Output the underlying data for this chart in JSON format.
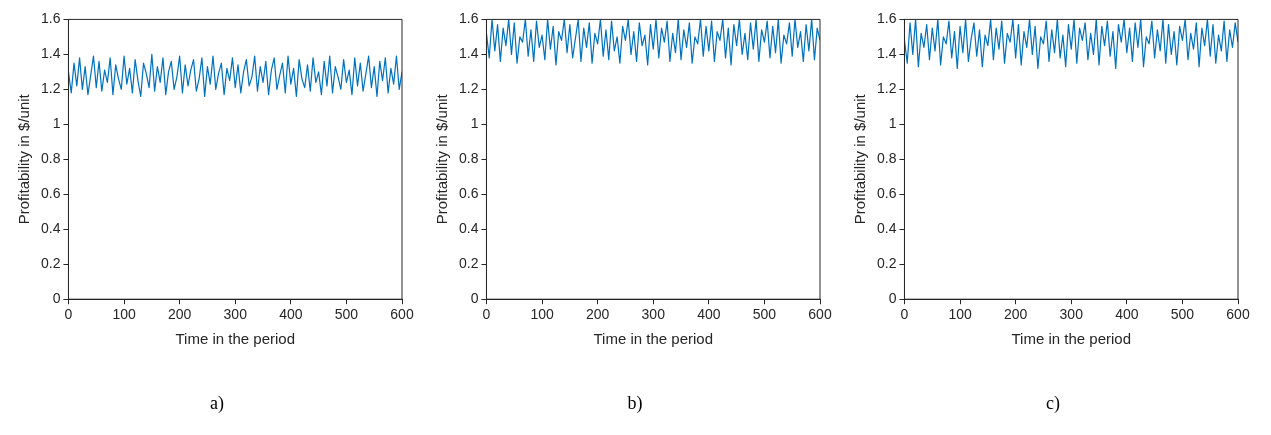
{
  "chart_data": [
    {
      "type": "line",
      "xlabel": "Time in the period",
      "ylabel": "Profitability in $/unit",
      "xlim": [
        0,
        600
      ],
      "xticks": [
        0,
        100,
        200,
        300,
        400,
        500,
        600
      ],
      "ylim": [
        0,
        1.6
      ],
      "yticks": [
        0,
        0.2,
        0.4,
        0.6,
        0.8,
        1,
        1.2,
        1.4,
        1.6
      ],
      "grid": false,
      "legend": false,
      "marker": "none",
      "line_style": "solid",
      "annotations": [
        "a)"
      ],
      "x": [
        0,
        5,
        10,
        15,
        20,
        25,
        30,
        35,
        40,
        45,
        50,
        55,
        60,
        65,
        70,
        75,
        80,
        85,
        90,
        95,
        100,
        105,
        110,
        115,
        120,
        125,
        130,
        135,
        140,
        145,
        150,
        155,
        160,
        165,
        170,
        175,
        180,
        185,
        190,
        195,
        200,
        205,
        210,
        215,
        220,
        225,
        230,
        235,
        240,
        245,
        250,
        255,
        260,
        265,
        270,
        275,
        280,
        285,
        290,
        295,
        300,
        305,
        310,
        315,
        320,
        325,
        330,
        335,
        340,
        345,
        350,
        355,
        360,
        365,
        370,
        375,
        380,
        385,
        390,
        395,
        400,
        405,
        410,
        415,
        420,
        425,
        430,
        435,
        440,
        445,
        450,
        455,
        460,
        465,
        470,
        475,
        480,
        485,
        490,
        495,
        500,
        505,
        510,
        515,
        520,
        525,
        530,
        535,
        540,
        545,
        550,
        555,
        560,
        565,
        570,
        575,
        580,
        585,
        590,
        595,
        600
      ],
      "series": [
        {
          "color": "#0072bd",
          "values": [
            1.3,
            1.18,
            1.35,
            1.22,
            1.38,
            1.2,
            1.33,
            1.17,
            1.28,
            1.39,
            1.21,
            1.36,
            1.19,
            1.31,
            1.24,
            1.38,
            1.17,
            1.34,
            1.26,
            1.2,
            1.39,
            1.23,
            1.32,
            1.18,
            1.37,
            1.25,
            1.16,
            1.35,
            1.29,
            1.21,
            1.4,
            1.19,
            1.33,
            1.24,
            1.38,
            1.17,
            1.3,
            1.36,
            1.2,
            1.27,
            1.39,
            1.18,
            1.34,
            1.22,
            1.31,
            1.37,
            1.19,
            1.26,
            1.38,
            1.16,
            1.33,
            1.23,
            1.39,
            1.2,
            1.29,
            1.35,
            1.17,
            1.32,
            1.25,
            1.38,
            1.21,
            1.34,
            1.18,
            1.3,
            1.37,
            1.22,
            1.27,
            1.39,
            1.19,
            1.33,
            1.24,
            1.36,
            1.17,
            1.31,
            1.38,
            1.2,
            1.28,
            1.35,
            1.18,
            1.39,
            1.23,
            1.32,
            1.16,
            1.37,
            1.26,
            1.21,
            1.34,
            1.19,
            1.38,
            1.24,
            1.3,
            1.17,
            1.36,
            1.22,
            1.39,
            1.18,
            1.33,
            1.27,
            1.2,
            1.37,
            1.24,
            1.31,
            1.17,
            1.38,
            1.22,
            1.35,
            1.19,
            1.29,
            1.39,
            1.21,
            1.33,
            1.16,
            1.36,
            1.25,
            1.38,
            1.18,
            1.32,
            1.23,
            1.39,
            1.2,
            1.3
          ]
        }
      ]
    },
    {
      "type": "line",
      "xlabel": "Time in the period",
      "ylabel": "Profitability in $/unit",
      "xlim": [
        0,
        600
      ],
      "xticks": [
        0,
        100,
        200,
        300,
        400,
        500,
        600
      ],
      "ylim": [
        0,
        1.6
      ],
      "yticks": [
        0,
        0.2,
        0.4,
        0.6,
        0.8,
        1,
        1.2,
        1.4,
        1.6
      ],
      "grid": false,
      "legend": false,
      "marker": "none",
      "line_style": "solid",
      "annotations": [
        "b)"
      ],
      "x": [
        0,
        5,
        10,
        15,
        20,
        25,
        30,
        35,
        40,
        45,
        50,
        55,
        60,
        65,
        70,
        75,
        80,
        85,
        90,
        95,
        100,
        105,
        110,
        115,
        120,
        125,
        130,
        135,
        140,
        145,
        150,
        155,
        160,
        165,
        170,
        175,
        180,
        185,
        190,
        195,
        200,
        205,
        210,
        215,
        220,
        225,
        230,
        235,
        240,
        245,
        250,
        255,
        260,
        265,
        270,
        275,
        280,
        285,
        290,
        295,
        300,
        305,
        310,
        315,
        320,
        325,
        330,
        335,
        340,
        345,
        350,
        355,
        360,
        365,
        370,
        375,
        380,
        385,
        390,
        395,
        400,
        405,
        410,
        415,
        420,
        425,
        430,
        435,
        440,
        445,
        450,
        455,
        460,
        465,
        470,
        475,
        480,
        485,
        490,
        495,
        500,
        505,
        510,
        515,
        520,
        525,
        530,
        535,
        540,
        545,
        550,
        555,
        560,
        565,
        570,
        575,
        580,
        585,
        590,
        595,
        600
      ],
      "series": [
        {
          "color": "#0072bd",
          "values": [
            1.52,
            1.38,
            1.6,
            1.42,
            1.57,
            1.36,
            1.55,
            1.45,
            1.6,
            1.4,
            1.58,
            1.35,
            1.5,
            1.47,
            1.6,
            1.39,
            1.54,
            1.36,
            1.59,
            1.44,
            1.51,
            1.37,
            1.6,
            1.43,
            1.56,
            1.34,
            1.53,
            1.48,
            1.6,
            1.41,
            1.57,
            1.38,
            1.49,
            1.6,
            1.36,
            1.55,
            1.44,
            1.58,
            1.35,
            1.52,
            1.46,
            1.6,
            1.39,
            1.54,
            1.37,
            1.59,
            1.42,
            1.5,
            1.35,
            1.56,
            1.48,
            1.6,
            1.4,
            1.53,
            1.36,
            1.58,
            1.45,
            1.51,
            1.34,
            1.57,
            1.43,
            1.6,
            1.38,
            1.55,
            1.47,
            1.59,
            1.36,
            1.52,
            1.41,
            1.6,
            1.37,
            1.54,
            1.44,
            1.58,
            1.35,
            1.5,
            1.46,
            1.6,
            1.39,
            1.56,
            1.42,
            1.59,
            1.36,
            1.53,
            1.48,
            1.6,
            1.38,
            1.55,
            1.34,
            1.57,
            1.45,
            1.6,
            1.4,
            1.52,
            1.37,
            1.58,
            1.43,
            1.6,
            1.36,
            1.54,
            1.47,
            1.59,
            1.38,
            1.56,
            1.41,
            1.6,
            1.35,
            1.51,
            1.46,
            1.58,
            1.39,
            1.6,
            1.44,
            1.53,
            1.36,
            1.57,
            1.42,
            1.6,
            1.37,
            1.55,
            1.48
          ]
        }
      ]
    },
    {
      "type": "line",
      "xlabel": "Time in the period",
      "ylabel": "Profitability in $/unit",
      "xlim": [
        0,
        600
      ],
      "xticks": [
        0,
        100,
        200,
        300,
        400,
        500,
        600
      ],
      "ylim": [
        0,
        1.6
      ],
      "yticks": [
        0,
        0.2,
        0.4,
        0.6,
        0.8,
        1,
        1.2,
        1.4,
        1.6
      ],
      "grid": false,
      "legend": false,
      "marker": "none",
      "line_style": "solid",
      "annotations": [
        "c)"
      ],
      "x": [
        0,
        5,
        10,
        15,
        20,
        25,
        30,
        35,
        40,
        45,
        50,
        55,
        60,
        65,
        70,
        75,
        80,
        85,
        90,
        95,
        100,
        105,
        110,
        115,
        120,
        125,
        130,
        135,
        140,
        145,
        150,
        155,
        160,
        165,
        170,
        175,
        180,
        185,
        190,
        195,
        200,
        205,
        210,
        215,
        220,
        225,
        230,
        235,
        240,
        245,
        250,
        255,
        260,
        265,
        270,
        275,
        280,
        285,
        290,
        295,
        300,
        305,
        310,
        315,
        320,
        325,
        330,
        335,
        340,
        345,
        350,
        355,
        360,
        365,
        370,
        375,
        380,
        385,
        390,
        395,
        400,
        405,
        410,
        415,
        420,
        425,
        430,
        435,
        440,
        445,
        450,
        455,
        460,
        465,
        470,
        475,
        480,
        485,
        490,
        495,
        500,
        505,
        510,
        515,
        520,
        525,
        530,
        535,
        540,
        545,
        550,
        555,
        560,
        565,
        570,
        575,
        580,
        585,
        590,
        595,
        600
      ],
      "series": [
        {
          "color": "#0072bd",
          "values": [
            1.48,
            1.35,
            1.58,
            1.4,
            1.6,
            1.33,
            1.52,
            1.44,
            1.57,
            1.37,
            1.55,
            1.42,
            1.6,
            1.34,
            1.5,
            1.46,
            1.59,
            1.38,
            1.53,
            1.32,
            1.56,
            1.41,
            1.6,
            1.36,
            1.49,
            1.58,
            1.39,
            1.54,
            1.33,
            1.51,
            1.45,
            1.6,
            1.37,
            1.55,
            1.43,
            1.59,
            1.35,
            1.52,
            1.47,
            1.6,
            1.38,
            1.57,
            1.34,
            1.53,
            1.44,
            1.6,
            1.4,
            1.56,
            1.32,
            1.5,
            1.46,
            1.59,
            1.36,
            1.54,
            1.41,
            1.6,
            1.38,
            1.51,
            1.33,
            1.57,
            1.43,
            1.6,
            1.35,
            1.55,
            1.48,
            1.58,
            1.37,
            1.52,
            1.4,
            1.6,
            1.34,
            1.56,
            1.45,
            1.59,
            1.39,
            1.53,
            1.32,
            1.57,
            1.47,
            1.6,
            1.41,
            1.55,
            1.36,
            1.58,
            1.44,
            1.6,
            1.33,
            1.5,
            1.46,
            1.59,
            1.38,
            1.54,
            1.42,
            1.6,
            1.35,
            1.57,
            1.4,
            1.53,
            1.34,
            1.56,
            1.48,
            1.6,
            1.37,
            1.52,
            1.43,
            1.58,
            1.33,
            1.55,
            1.45,
            1.6,
            1.39,
            1.57,
            1.35,
            1.51,
            1.42,
            1.59,
            1.36,
            1.54,
            1.44,
            1.58,
            1.47
          ]
        }
      ]
    }
  ]
}
